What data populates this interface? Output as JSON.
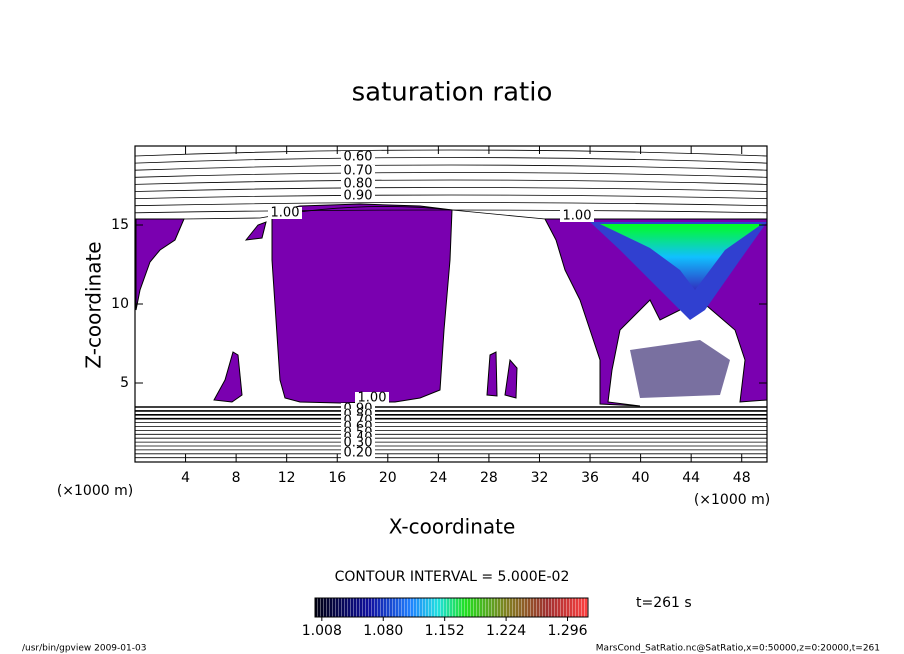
{
  "chart_data": {
    "type": "contour",
    "title": "saturation ratio",
    "x_label": "X-coordinate",
    "y_label": "Z-coordinate",
    "x_unit": "(×1000 m)",
    "y_unit": "(×1000 m)",
    "xlim": [
      0,
      50
    ],
    "ylim": [
      0,
      20
    ],
    "xticks": [
      4,
      8,
      12,
      16,
      20,
      24,
      28,
      32,
      36,
      40,
      44,
      48
    ],
    "yticks": [
      5,
      10,
      15
    ],
    "contour_labels": [
      {
        "value": 0.6,
        "label": "0.60"
      },
      {
        "value": 0.7,
        "label": "0.70"
      },
      {
        "value": 0.8,
        "label": "0.80"
      },
      {
        "value": 0.9,
        "label": "0.90"
      },
      {
        "value": 1.0,
        "label": "1.00"
      },
      {
        "value": 1.0,
        "label": "1.00"
      },
      {
        "value": 1.0,
        "label": "1.00"
      },
      {
        "value": 0.9,
        "label": "0.90"
      },
      {
        "value": 0.8,
        "label": "0.80"
      },
      {
        "value": 0.7,
        "label": "0.70"
      },
      {
        "value": 0.6,
        "label": "0.60"
      },
      {
        "value": 0.5,
        "label": "0.50"
      },
      {
        "value": 0.4,
        "label": "0.40"
      },
      {
        "value": 0.3,
        "label": "0.30"
      },
      {
        "value": 0.2,
        "label": "0.20"
      }
    ],
    "contour_interval": "CONTOUR INTERVAL = 5.000E-02",
    "time_label": "t=261 s",
    "colorbar_lim": [
      1.0,
      1.32
    ],
    "colorbar_ticks": [
      1.008,
      {
        "value": 1.08,
        "label": "1.080"
      },
      1.152,
      1.224,
      1.296
    ],
    "footer_left": "/usr/bin/gpview  2009-01-03",
    "footer_right": "MarsCond_SatRatio.nc@SatRatio,x=0:50000,z=0:20000,t=261"
  }
}
